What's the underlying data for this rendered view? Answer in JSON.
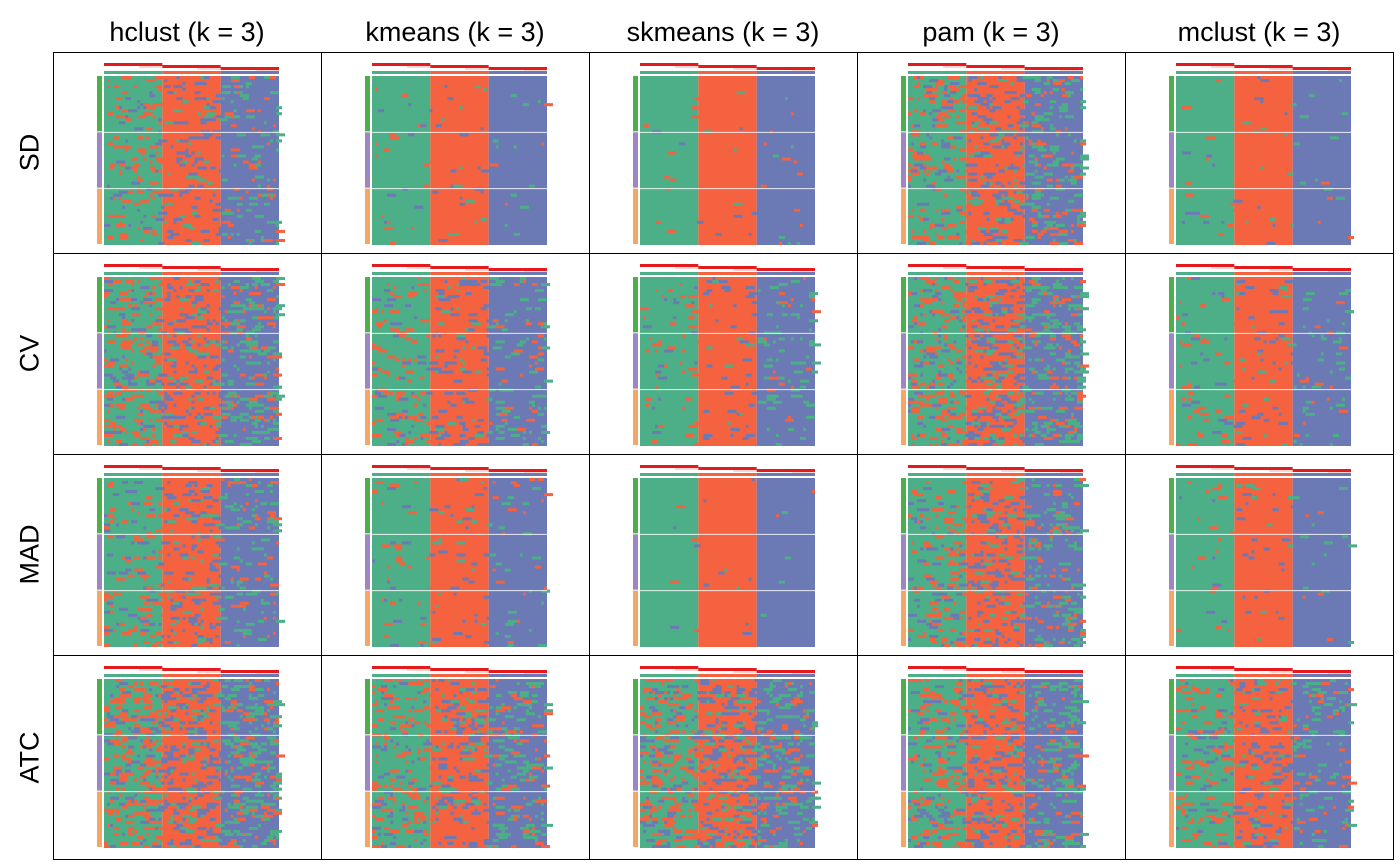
{
  "chart_data": {
    "type": "heatmap",
    "layout": "grid",
    "columns": [
      "hclust (k = 3)",
      "kmeans (k = 3)",
      "skmeans (k = 3)",
      "pam (k = 3)",
      "mclust (k = 3)"
    ],
    "rows": [
      "SD",
      "CV",
      "MAD",
      "ATC"
    ],
    "k": 3,
    "class_colors": {
      "1": "#4DAF87",
      "2": "#F46240",
      "3": "#6B7AB5"
    },
    "row_annotation_colors": [
      "#4DAF4A",
      "#9E86C4",
      "#F6A564"
    ],
    "silhouette_color": "#E41A1C",
    "noise_level": [
      [
        0.1,
        0.02,
        0.01,
        0.15,
        0.02
      ],
      [
        0.18,
        0.1,
        0.05,
        0.2,
        0.05
      ],
      [
        0.12,
        0.03,
        0.01,
        0.15,
        0.02
      ],
      [
        0.22,
        0.15,
        0.2,
        0.18,
        0.12
      ]
    ]
  }
}
